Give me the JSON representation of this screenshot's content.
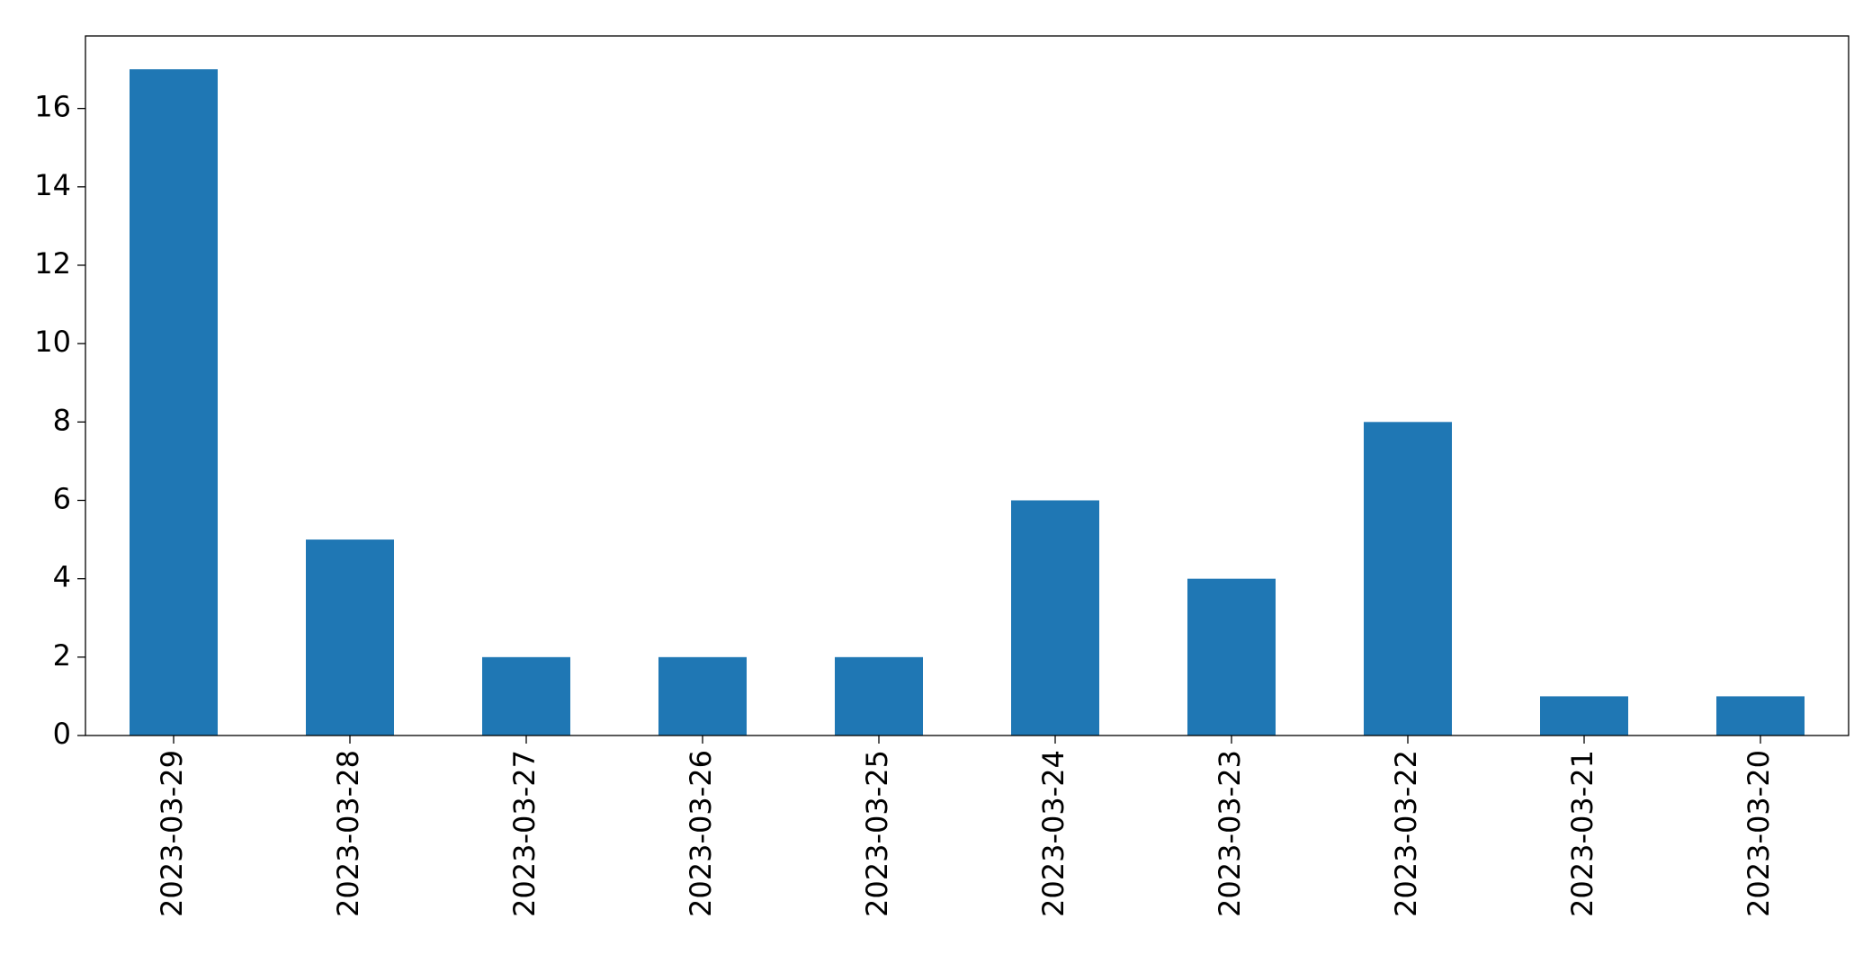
{
  "chart_data": {
    "type": "bar",
    "categories": [
      "2023-03-29",
      "2023-03-28",
      "2023-03-27",
      "2023-03-26",
      "2023-03-25",
      "2023-03-24",
      "2023-03-23",
      "2023-03-22",
      "2023-03-21",
      "2023-03-20"
    ],
    "values": [
      17,
      5,
      2,
      2,
      2,
      6,
      4,
      8,
      1,
      1
    ],
    "color": "#1f77b4",
    "ylim": [
      0,
      17.85
    ],
    "yticks": [
      0,
      2,
      4,
      6,
      8,
      10,
      12,
      14,
      16
    ],
    "grid": false
  }
}
